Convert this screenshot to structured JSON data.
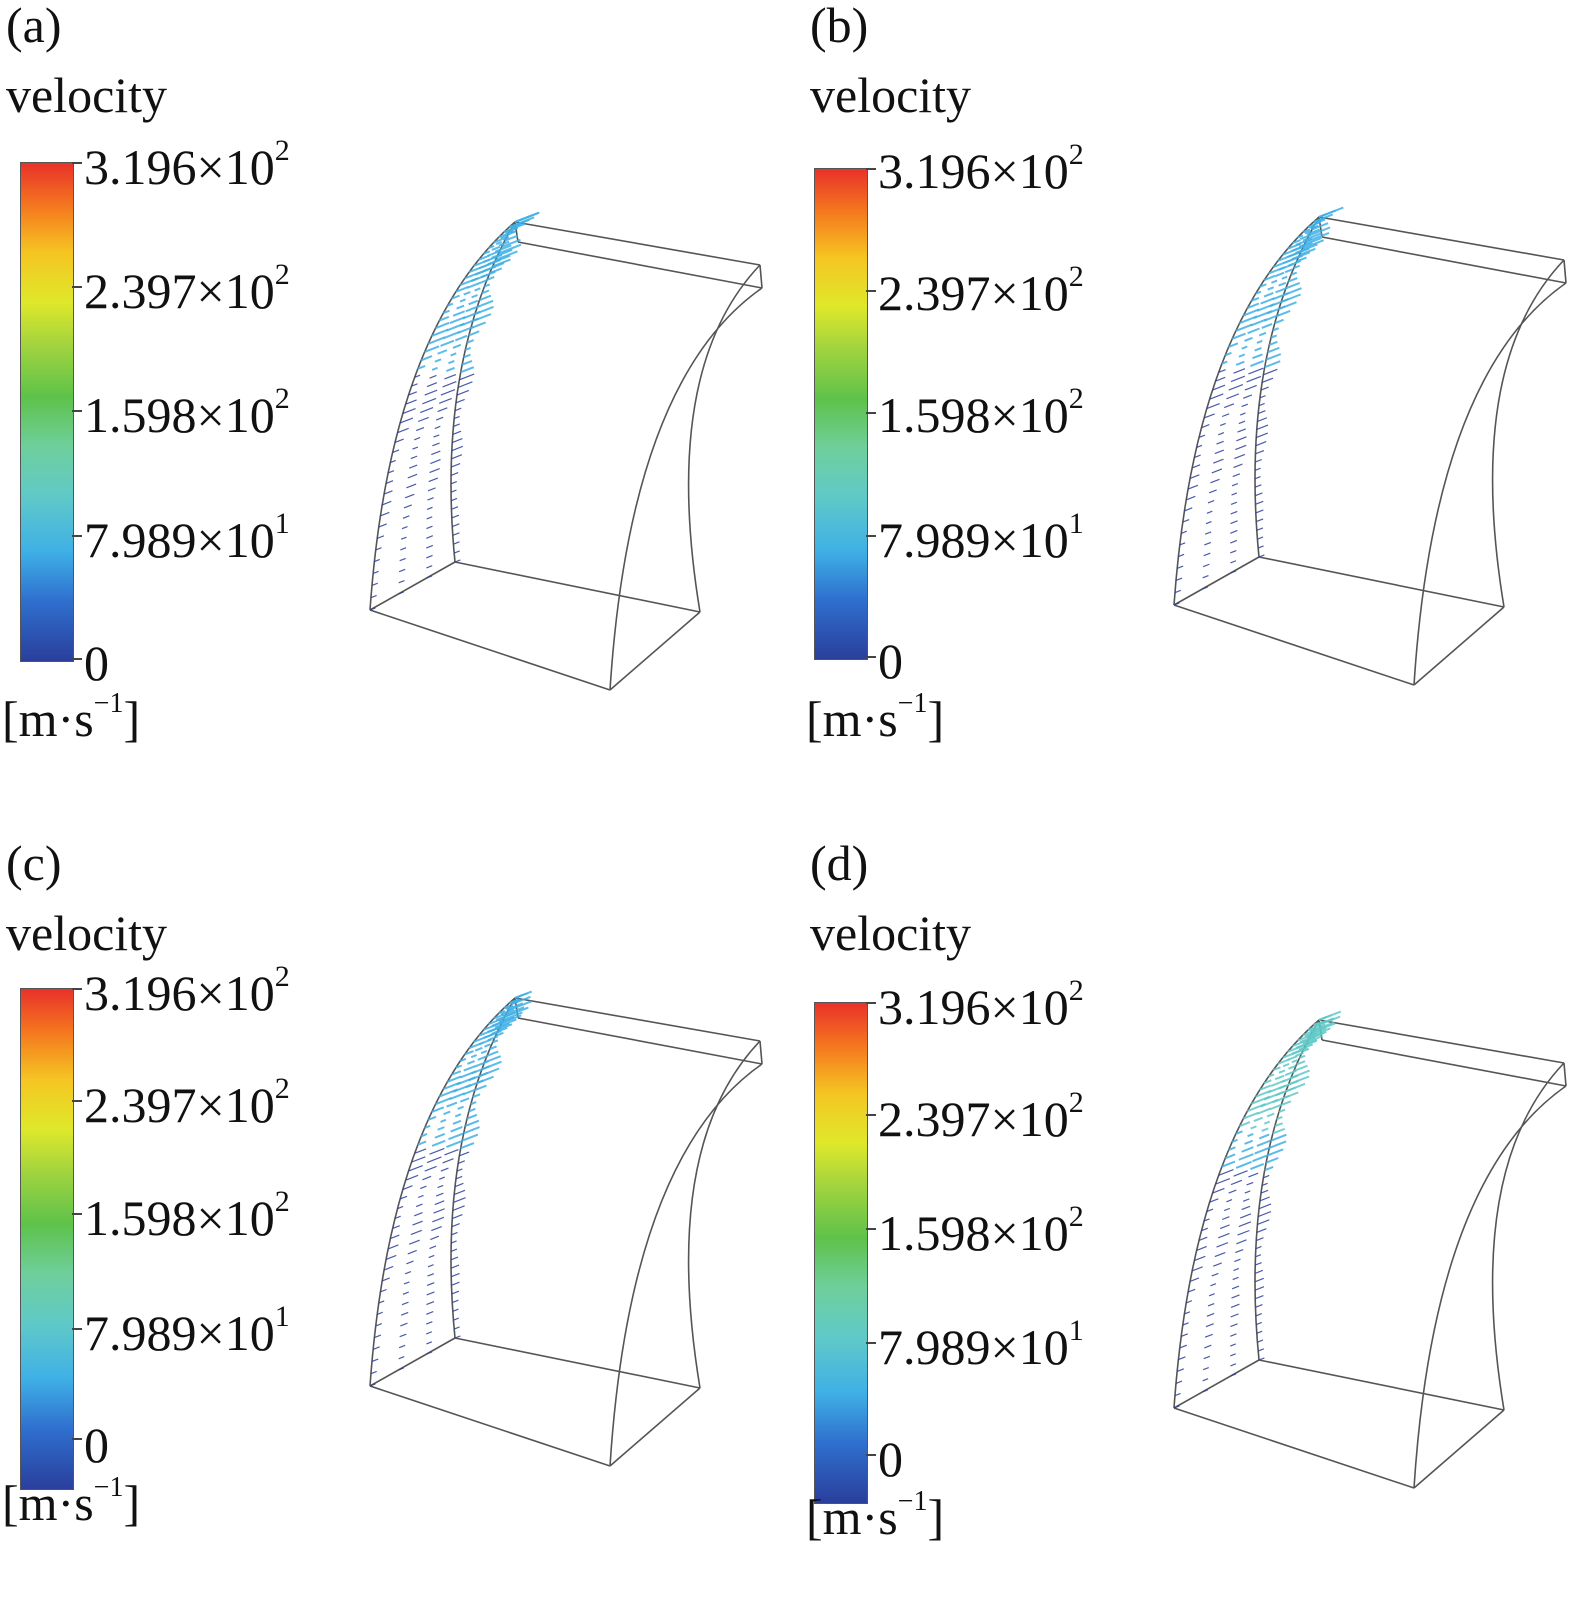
{
  "panels": [
    {
      "label": "(a)",
      "quantity": "velocity"
    },
    {
      "label": "(b)",
      "quantity": "velocity"
    },
    {
      "label": "(c)",
      "quantity": "velocity"
    },
    {
      "label": "(d)",
      "quantity": "velocity"
    }
  ],
  "colorbar": {
    "ticks": [
      {
        "mantissa": "3.196×10",
        "exp": "2"
      },
      {
        "mantissa": "2.397×10",
        "exp": "2"
      },
      {
        "mantissa": "1.598×10",
        "exp": "2"
      },
      {
        "mantissa": "7.989×10",
        "exp": "1"
      },
      {
        "mantissa": "0",
        "exp": ""
      }
    ],
    "units_base": "[m·s",
    "units_exp": "−1",
    "units_close": "]",
    "colors": [
      "#2a3f9c",
      "#3fb0e6",
      "#5fc9c8",
      "#5ec24a",
      "#dfe82a",
      "#f57a1e",
      "#e8312a"
    ]
  }
}
